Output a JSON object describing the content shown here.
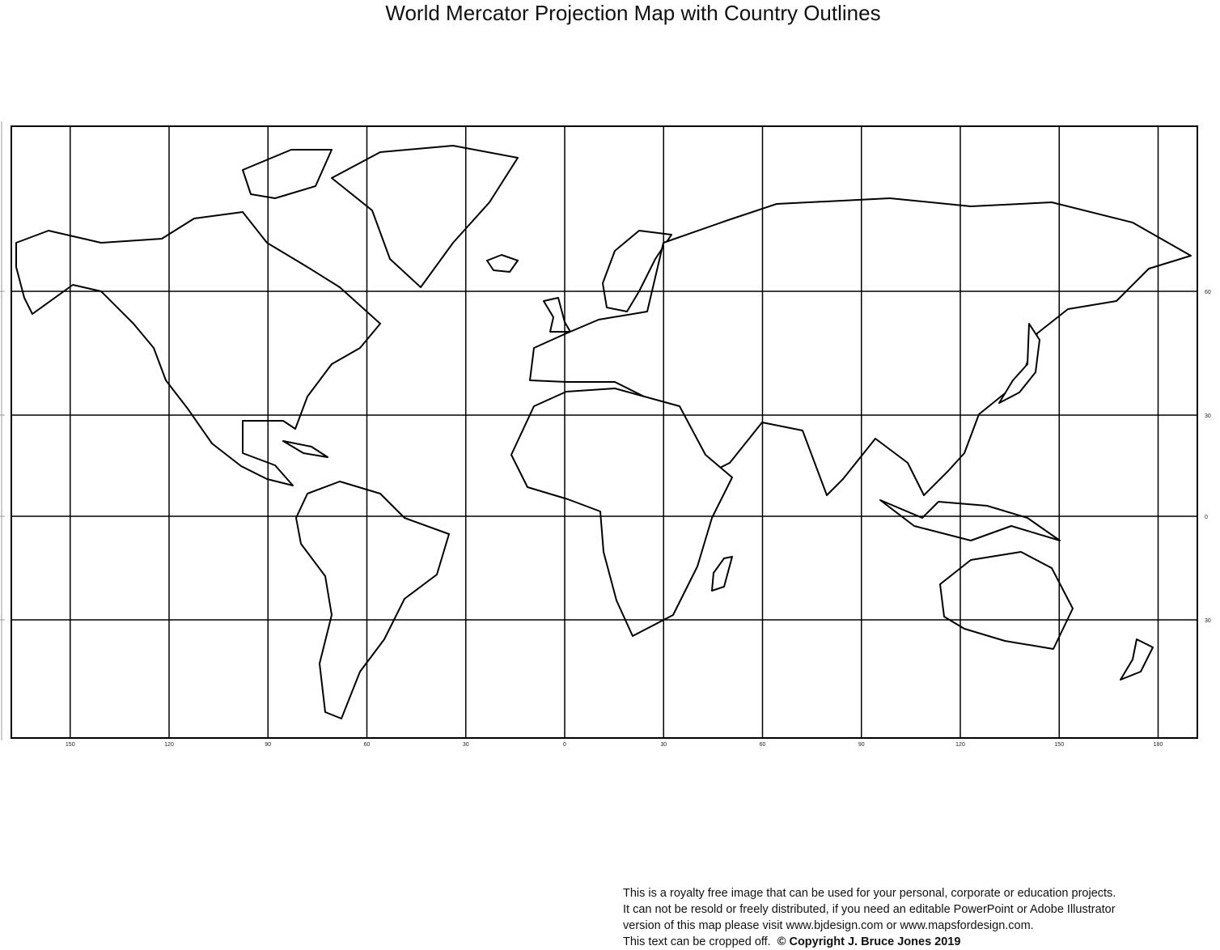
{
  "title": "World Mercator Projection Map with Country Outlines",
  "map": {
    "projection": "Mercator",
    "style": "black country outlines on white, no fill",
    "line_color": "#000000",
    "background": "#ffffff",
    "longitude_labels": [
      "150",
      "120",
      "90",
      "60",
      "30",
      "0",
      "30",
      "60",
      "90",
      "120",
      "150",
      "180"
    ],
    "longitudes": [
      -150,
      -120,
      -90,
      -60,
      -30,
      0,
      30,
      60,
      90,
      120,
      150,
      180
    ],
    "latitude_labels": [
      "60",
      "30",
      "0",
      "30"
    ],
    "latitudes": [
      60,
      30,
      0,
      -30
    ]
  },
  "notice": {
    "line1": "This is a royalty free image that can be used for your personal, corporate or education projects.",
    "line2": "It can not be resold or freely distributed, if you need an editable PowerPoint or Adobe Illustrator",
    "line3": "version of this map please visit www.bjdesign.com or www.mapsfordesign.com.",
    "line4": "This text can be cropped off.",
    "copyright": "© Copyright J. Bruce Jones 2019"
  }
}
